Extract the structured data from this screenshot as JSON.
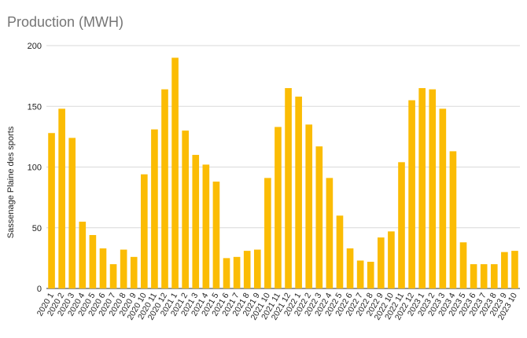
{
  "chart_data": {
    "type": "bar",
    "title": "Production (MWH)",
    "xlabel": "",
    "ylabel": "Sassenage Plaine des sports",
    "ylim": [
      0,
      200
    ],
    "yticks": [
      0,
      50,
      100,
      150,
      200
    ],
    "grid": true,
    "legend": "none",
    "bar_color": "#FBBC04",
    "categories": [
      "2020 1",
      "2020 2",
      "2020 3",
      "2020 4",
      "2020 5",
      "2020 6",
      "2020 7",
      "2020 8",
      "2020 9",
      "2020 10",
      "2020 11",
      "2020 12",
      "2021 1",
      "2021 2",
      "2021 3",
      "2021 4",
      "2021 5",
      "2021 6",
      "2021 7",
      "2021 8",
      "2021 9",
      "2021 10",
      "2021 11",
      "2021 12",
      "2022 1",
      "2022 2",
      "2022 3",
      "2022 4",
      "2022 5",
      "2022 6",
      "2022 7",
      "2022 8",
      "2022 9",
      "2022 10",
      "2022 11",
      "2022 12",
      "2023 1",
      "2023 2",
      "2023 3",
      "2023 4",
      "2023 5",
      "2023 6",
      "2023 7",
      "2023 8",
      "2023 9",
      "2023 10"
    ],
    "values": [
      128,
      148,
      124,
      55,
      44,
      33,
      20,
      32,
      26,
      94,
      131,
      164,
      190,
      130,
      110,
      102,
      88,
      25,
      26,
      31,
      32,
      91,
      133,
      165,
      158,
      135,
      117,
      91,
      60,
      33,
      23,
      22,
      42,
      47,
      104,
      155,
      165,
      164,
      148,
      113,
      38,
      20,
      20,
      20,
      30,
      31
    ]
  }
}
